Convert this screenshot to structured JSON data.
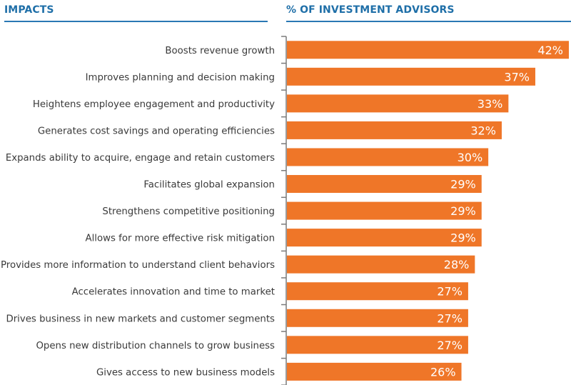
{
  "headers": {
    "left": "IMPACTS",
    "right": "% OF INVESTMENT ADVISORS"
  },
  "colors": {
    "bar": "#ef7628",
    "header": "#1f6fa8",
    "axis": "#7a7a7a"
  },
  "chart_data": {
    "type": "bar",
    "orientation": "horizontal",
    "title": "",
    "xlabel": "% OF INVESTMENT ADVISORS",
    "ylabel": "IMPACTS",
    "xlim": [
      0,
      42
    ],
    "grid": false,
    "legend": "none",
    "categories": [
      "Boosts revenue growth",
      "Improves planning and decision making",
      "Heightens employee engagement and productivity",
      "Generates cost savings and operating efficiencies",
      "Expands ability to acquire, engage and retain customers",
      "Facilitates global expansion",
      "Strengthens competitive positioning",
      "Allows for more effective risk mitigation",
      "Provides more information to understand client behaviors",
      "Accelerates innovation and time to market",
      "Drives business in new markets and customer segments",
      "Opens new distribution channels to grow business",
      "Gives access to new business models"
    ],
    "values": [
      42,
      37,
      33,
      32,
      30,
      29,
      29,
      29,
      28,
      27,
      27,
      27,
      26
    ],
    "value_labels": [
      "42%",
      "37%",
      "33%",
      "32%",
      "30%",
      "29%",
      "29%",
      "29%",
      "28%",
      "27%",
      "27%",
      "27%",
      "26%"
    ]
  }
}
